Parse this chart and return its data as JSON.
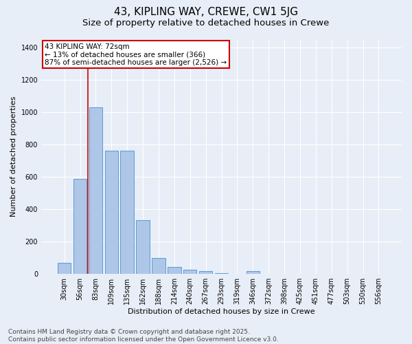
{
  "title_line1": "43, KIPLING WAY, CREWE, CW1 5JG",
  "title_line2": "Size of property relative to detached houses in Crewe",
  "xlabel": "Distribution of detached houses by size in Crewe",
  "ylabel": "Number of detached properties",
  "categories": [
    "30sqm",
    "56sqm",
    "83sqm",
    "109sqm",
    "135sqm",
    "162sqm",
    "188sqm",
    "214sqm",
    "240sqm",
    "267sqm",
    "293sqm",
    "319sqm",
    "346sqm",
    "372sqm",
    "398sqm",
    "425sqm",
    "451sqm",
    "477sqm",
    "503sqm",
    "530sqm",
    "556sqm"
  ],
  "values": [
    65,
    585,
    1030,
    760,
    760,
    330,
    95,
    40,
    25,
    15,
    5,
    0,
    15,
    0,
    0,
    0,
    0,
    0,
    0,
    0,
    0
  ],
  "bar_color": "#aec6e8",
  "bar_edge_color": "#5b9bd5",
  "background_color": "#e8eef7",
  "grid_color": "#ffffff",
  "red_line_x": 1.5,
  "annotation_title": "43 KIPLING WAY: 72sqm",
  "annotation_line1": "← 13% of detached houses are smaller (366)",
  "annotation_line2": "87% of semi-detached houses are larger (2,526) →",
  "annotation_box_facecolor": "#ffffff",
  "annotation_box_edgecolor": "#cc0000",
  "red_line_color": "#cc0000",
  "ylim": [
    0,
    1450
  ],
  "yticks": [
    0,
    200,
    400,
    600,
    800,
    1000,
    1200,
    1400
  ],
  "footer_line1": "Contains HM Land Registry data © Crown copyright and database right 2025.",
  "footer_line2": "Contains public sector information licensed under the Open Government Licence v3.0.",
  "title_fontsize": 11,
  "subtitle_fontsize": 9.5,
  "axis_label_fontsize": 8,
  "tick_fontsize": 7,
  "annotation_fontsize": 7.5,
  "footer_fontsize": 6.5
}
